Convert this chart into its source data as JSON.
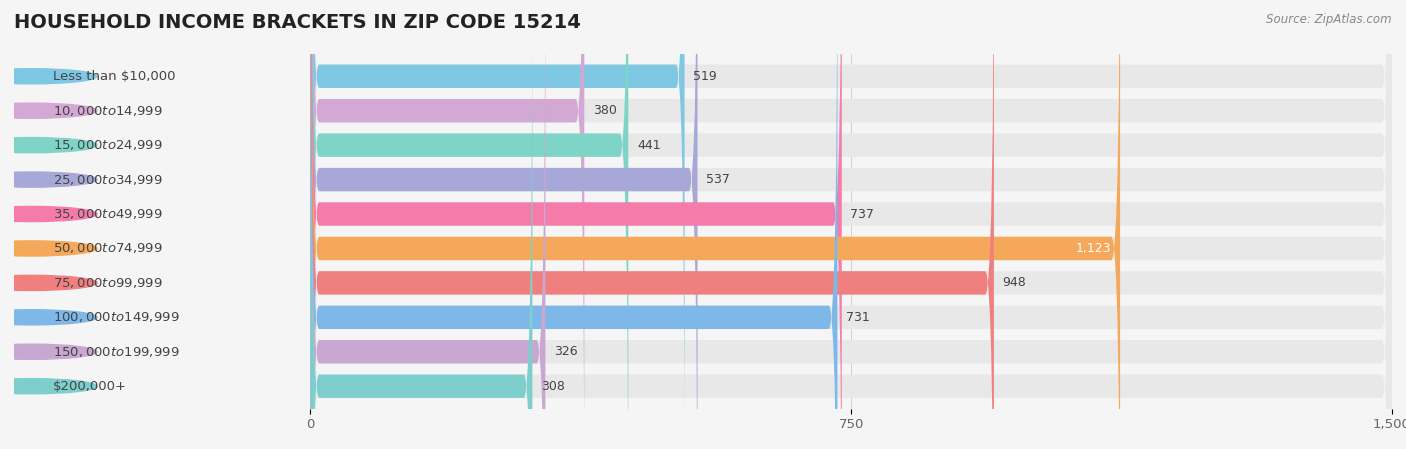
{
  "title": "HOUSEHOLD INCOME BRACKETS IN ZIP CODE 15214",
  "source": "Source: ZipAtlas.com",
  "categories": [
    "Less than $10,000",
    "$10,000 to $14,999",
    "$15,000 to $24,999",
    "$25,000 to $34,999",
    "$35,000 to $49,999",
    "$50,000 to $74,999",
    "$75,000 to $99,999",
    "$100,000 to $149,999",
    "$150,000 to $199,999",
    "$200,000+"
  ],
  "values": [
    519,
    380,
    441,
    537,
    737,
    1123,
    948,
    731,
    326,
    308
  ],
  "bar_colors": [
    "#7EC8E3",
    "#D4A8D4",
    "#7FD4C8",
    "#A8A8D8",
    "#F47BAA",
    "#F5A85A",
    "#F08080",
    "#7EB8E8",
    "#C8A8D0",
    "#7ECECE"
  ],
  "xlim": [
    0,
    1500
  ],
  "xticks": [
    0,
    750,
    1500
  ],
  "background_color": "#f5f5f5",
  "bar_background": "#e8e8e8",
  "title_fontsize": 14,
  "label_fontsize": 9.5,
  "value_fontsize": 9,
  "source_fontsize": 8.5,
  "value_inside_color": "white",
  "value_outside_color": "#444444",
  "label_color": "#444444",
  "title_color": "#222222",
  "source_color": "#888888",
  "inside_value_threshold": 1100
}
